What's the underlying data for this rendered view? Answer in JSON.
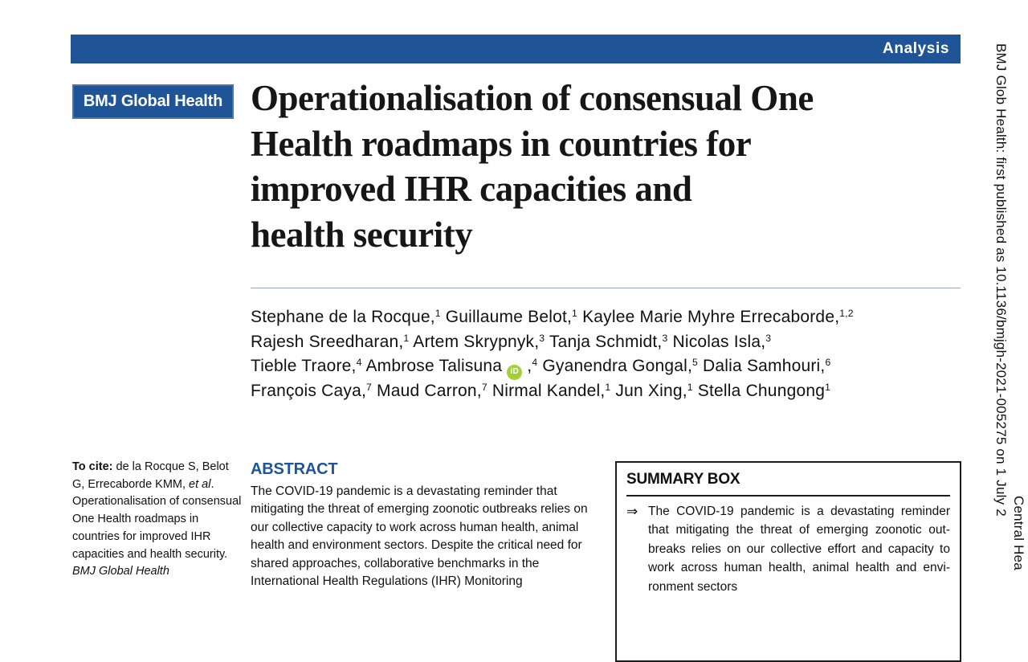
{
  "colors": {
    "brand_blue": "#1F5596",
    "orcid_green": "#A6CE39",
    "rule_gray": "#97A3BD"
  },
  "banner": {
    "label": "Analysis"
  },
  "journal_badge": {
    "label": "BMJ Global Health"
  },
  "article": {
    "title_lines": [
      "Operationalisation of consensual One",
      "Health roadmaps in countries for",
      "improved IHR capacities and",
      "health security"
    ],
    "authors_lines": [
      [
        {
          "t": "Stephane de la Rocque,"
        },
        {
          "t": "1",
          "style": "sup"
        },
        {
          "t": " Guillaume Belot,"
        },
        {
          "t": "1",
          "style": "sup"
        },
        {
          "t": " Kaylee Marie Myhre Errecaborde,"
        },
        {
          "t": "1,2",
          "style": "sup"
        }
      ],
      [
        {
          "t": "Rajesh Sreedharan,"
        },
        {
          "t": "1",
          "style": "sup"
        },
        {
          "t": " Artem Skrypnyk,"
        },
        {
          "t": "3",
          "style": "sup"
        },
        {
          "t": " Tanja Schmidt,"
        },
        {
          "t": "3",
          "style": "sup"
        },
        {
          "t": " Nicolas Isla,"
        },
        {
          "t": "3",
          "style": "sup"
        }
      ],
      [
        {
          "t": "Tieble Traore,"
        },
        {
          "t": "4",
          "style": "sup"
        },
        {
          "t": " Ambrose Talisuna "
        },
        {
          "icon": "orcid",
          "glyph": "iD"
        },
        {
          "t": " ,"
        },
        {
          "t": "4",
          "style": "sup"
        },
        {
          "t": " Gyanendra Gongal,"
        },
        {
          "t": "5",
          "style": "sup"
        },
        {
          "t": " Dalia Samhouri,"
        },
        {
          "t": "6",
          "style": "sup"
        }
      ],
      [
        {
          "t": "François Caya,"
        },
        {
          "t": "7",
          "style": "sup"
        },
        {
          "t": " Maud Carron,"
        },
        {
          "t": "7",
          "style": "sup"
        },
        {
          "t": " Nirmal Kandel,"
        },
        {
          "t": "1",
          "style": "sup"
        },
        {
          "t": " Jun Xing,"
        },
        {
          "t": "1",
          "style": "sup"
        },
        {
          "t": " Stella Chungong"
        },
        {
          "t": "1",
          "style": "sup"
        }
      ]
    ]
  },
  "cite_note": {
    "segments": [
      {
        "t": "To cite: ",
        "style": "b"
      },
      {
        "t": "de la Rocque S, Belot G, Errecaborde KMM, "
      },
      {
        "t": "et al",
        "style": "i"
      },
      {
        "t": ". Operationalisation of consensual One Health roadmaps in countries for improved IHR capacities and health security. "
      },
      {
        "t": "BMJ Global Health",
        "style": "i"
      }
    ]
  },
  "abstract": {
    "heading": "ABSTRACT",
    "text": "The COVID-19 pandemic is a devastating reminder that mitigating the threat of emerging zoonotic outbreaks relies on our collective capacity to work across human health, animal health and environment sectors. Despite the critical need for shared approaches, collaborative benchmarks in the International Health Regulations (IHR) Monitoring"
  },
  "summary_box": {
    "heading": "SUMMARY BOX",
    "arrow": "⇒",
    "text": "The COVID-19 pandemic is a devastating reminder that mitigating the threat of emerging zoonotic out­breaks relies on our collective effort and capacity to work across human health, animal health and envi­ronment sectors"
  },
  "margin_note": {
    "line1": "BMJ Glob Health: first published as 10.1136/bmjgh-2021-005275 on 1 July 2",
    "line2": "Central Hea"
  }
}
